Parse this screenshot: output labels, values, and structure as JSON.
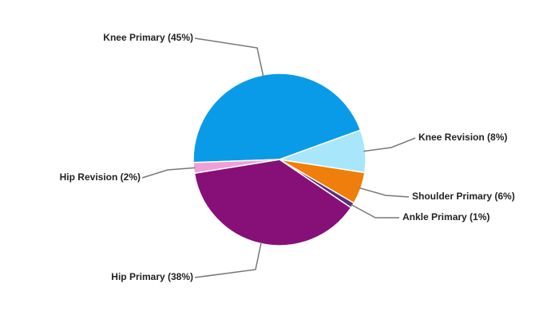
{
  "chart_data": {
    "type": "pie",
    "categories": [
      "Knee Primary (45%)",
      "Knee Revision (8%)",
      "Shoulder Primary (6%)",
      "Ankle Primary (1%)",
      "Hip Primary (38%)",
      "Hip Revision (2%)"
    ],
    "values": [
      45,
      8,
      6,
      1,
      38,
      2
    ],
    "colors": [
      "#0a9be8",
      "#a8e6fb",
      "#f07e0a",
      "#5c2d7a",
      "#861078",
      "#f0a0d8"
    ]
  }
}
